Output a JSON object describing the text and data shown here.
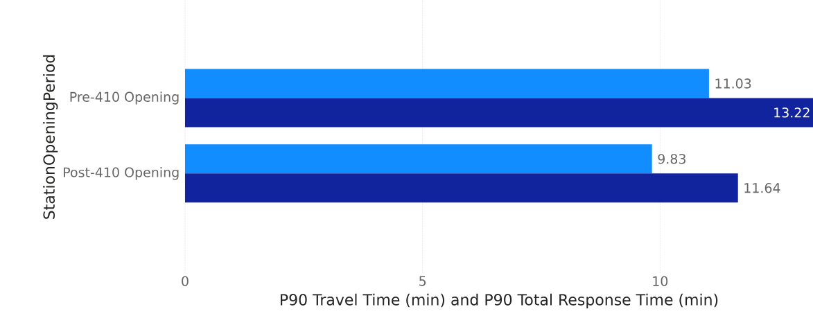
{
  "chart_data": {
    "type": "bar",
    "orientation": "horizontal",
    "categories": [
      "Pre-410 Opening",
      "Post-410 Opening"
    ],
    "series": [
      {
        "color": "#118dff",
        "values": [
          11.03,
          9.83
        ]
      },
      {
        "color": "#12239e",
        "values": [
          13.22,
          11.64
        ]
      }
    ],
    "xlabel": "P90 Travel Time (min) and P90 Total Response Time (min)",
    "ylabel": "StationOpeningPeriod",
    "xlim": [
      0,
      13.22
    ],
    "xticks": [
      0,
      5,
      10
    ],
    "grid": "x",
    "data_labels": true
  }
}
